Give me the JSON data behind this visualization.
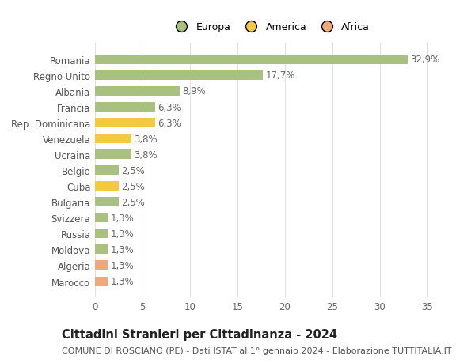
{
  "categories": [
    "Romania",
    "Regno Unito",
    "Albania",
    "Francia",
    "Rep. Dominicana",
    "Venezuela",
    "Ucraina",
    "Belgio",
    "Cuba",
    "Bulgaria",
    "Svizzera",
    "Russia",
    "Moldova",
    "Algeria",
    "Marocco"
  ],
  "values": [
    32.9,
    17.7,
    8.9,
    6.3,
    6.3,
    3.8,
    3.8,
    2.5,
    2.5,
    2.5,
    1.3,
    1.3,
    1.3,
    1.3,
    1.3
  ],
  "labels": [
    "32,9%",
    "17,7%",
    "8,9%",
    "6,3%",
    "6,3%",
    "3,8%",
    "3,8%",
    "2,5%",
    "2,5%",
    "2,5%",
    "1,3%",
    "1,3%",
    "1,3%",
    "1,3%",
    "1,3%"
  ],
  "colors": [
    "#a8c080",
    "#a8c080",
    "#a8c080",
    "#a8c080",
    "#f5c842",
    "#f5c842",
    "#a8c080",
    "#a8c080",
    "#f5c842",
    "#a8c080",
    "#a8c080",
    "#a8c080",
    "#a8c080",
    "#f0a878",
    "#f0a878"
  ],
  "legend_labels": [
    "Europa",
    "America",
    "Africa"
  ],
  "legend_colors": [
    "#a8c080",
    "#f5c842",
    "#f0a878"
  ],
  "title": "Cittadini Stranieri per Cittadinanza - 2024",
  "subtitle": "COMUNE DI ROSCIANO (PE) - Dati ISTAT al 1° gennaio 2024 - Elaborazione TUTTITALIA.IT",
  "xlim": [
    0,
    37
  ],
  "xticks": [
    0,
    5,
    10,
    15,
    20,
    25,
    30,
    35
  ],
  "bg_color": "#ffffff",
  "grid_color": "#e0e0e0",
  "bar_height": 0.6,
  "label_fontsize": 8.5,
  "tick_fontsize": 8.5,
  "title_fontsize": 10.5,
  "subtitle_fontsize": 8.0
}
